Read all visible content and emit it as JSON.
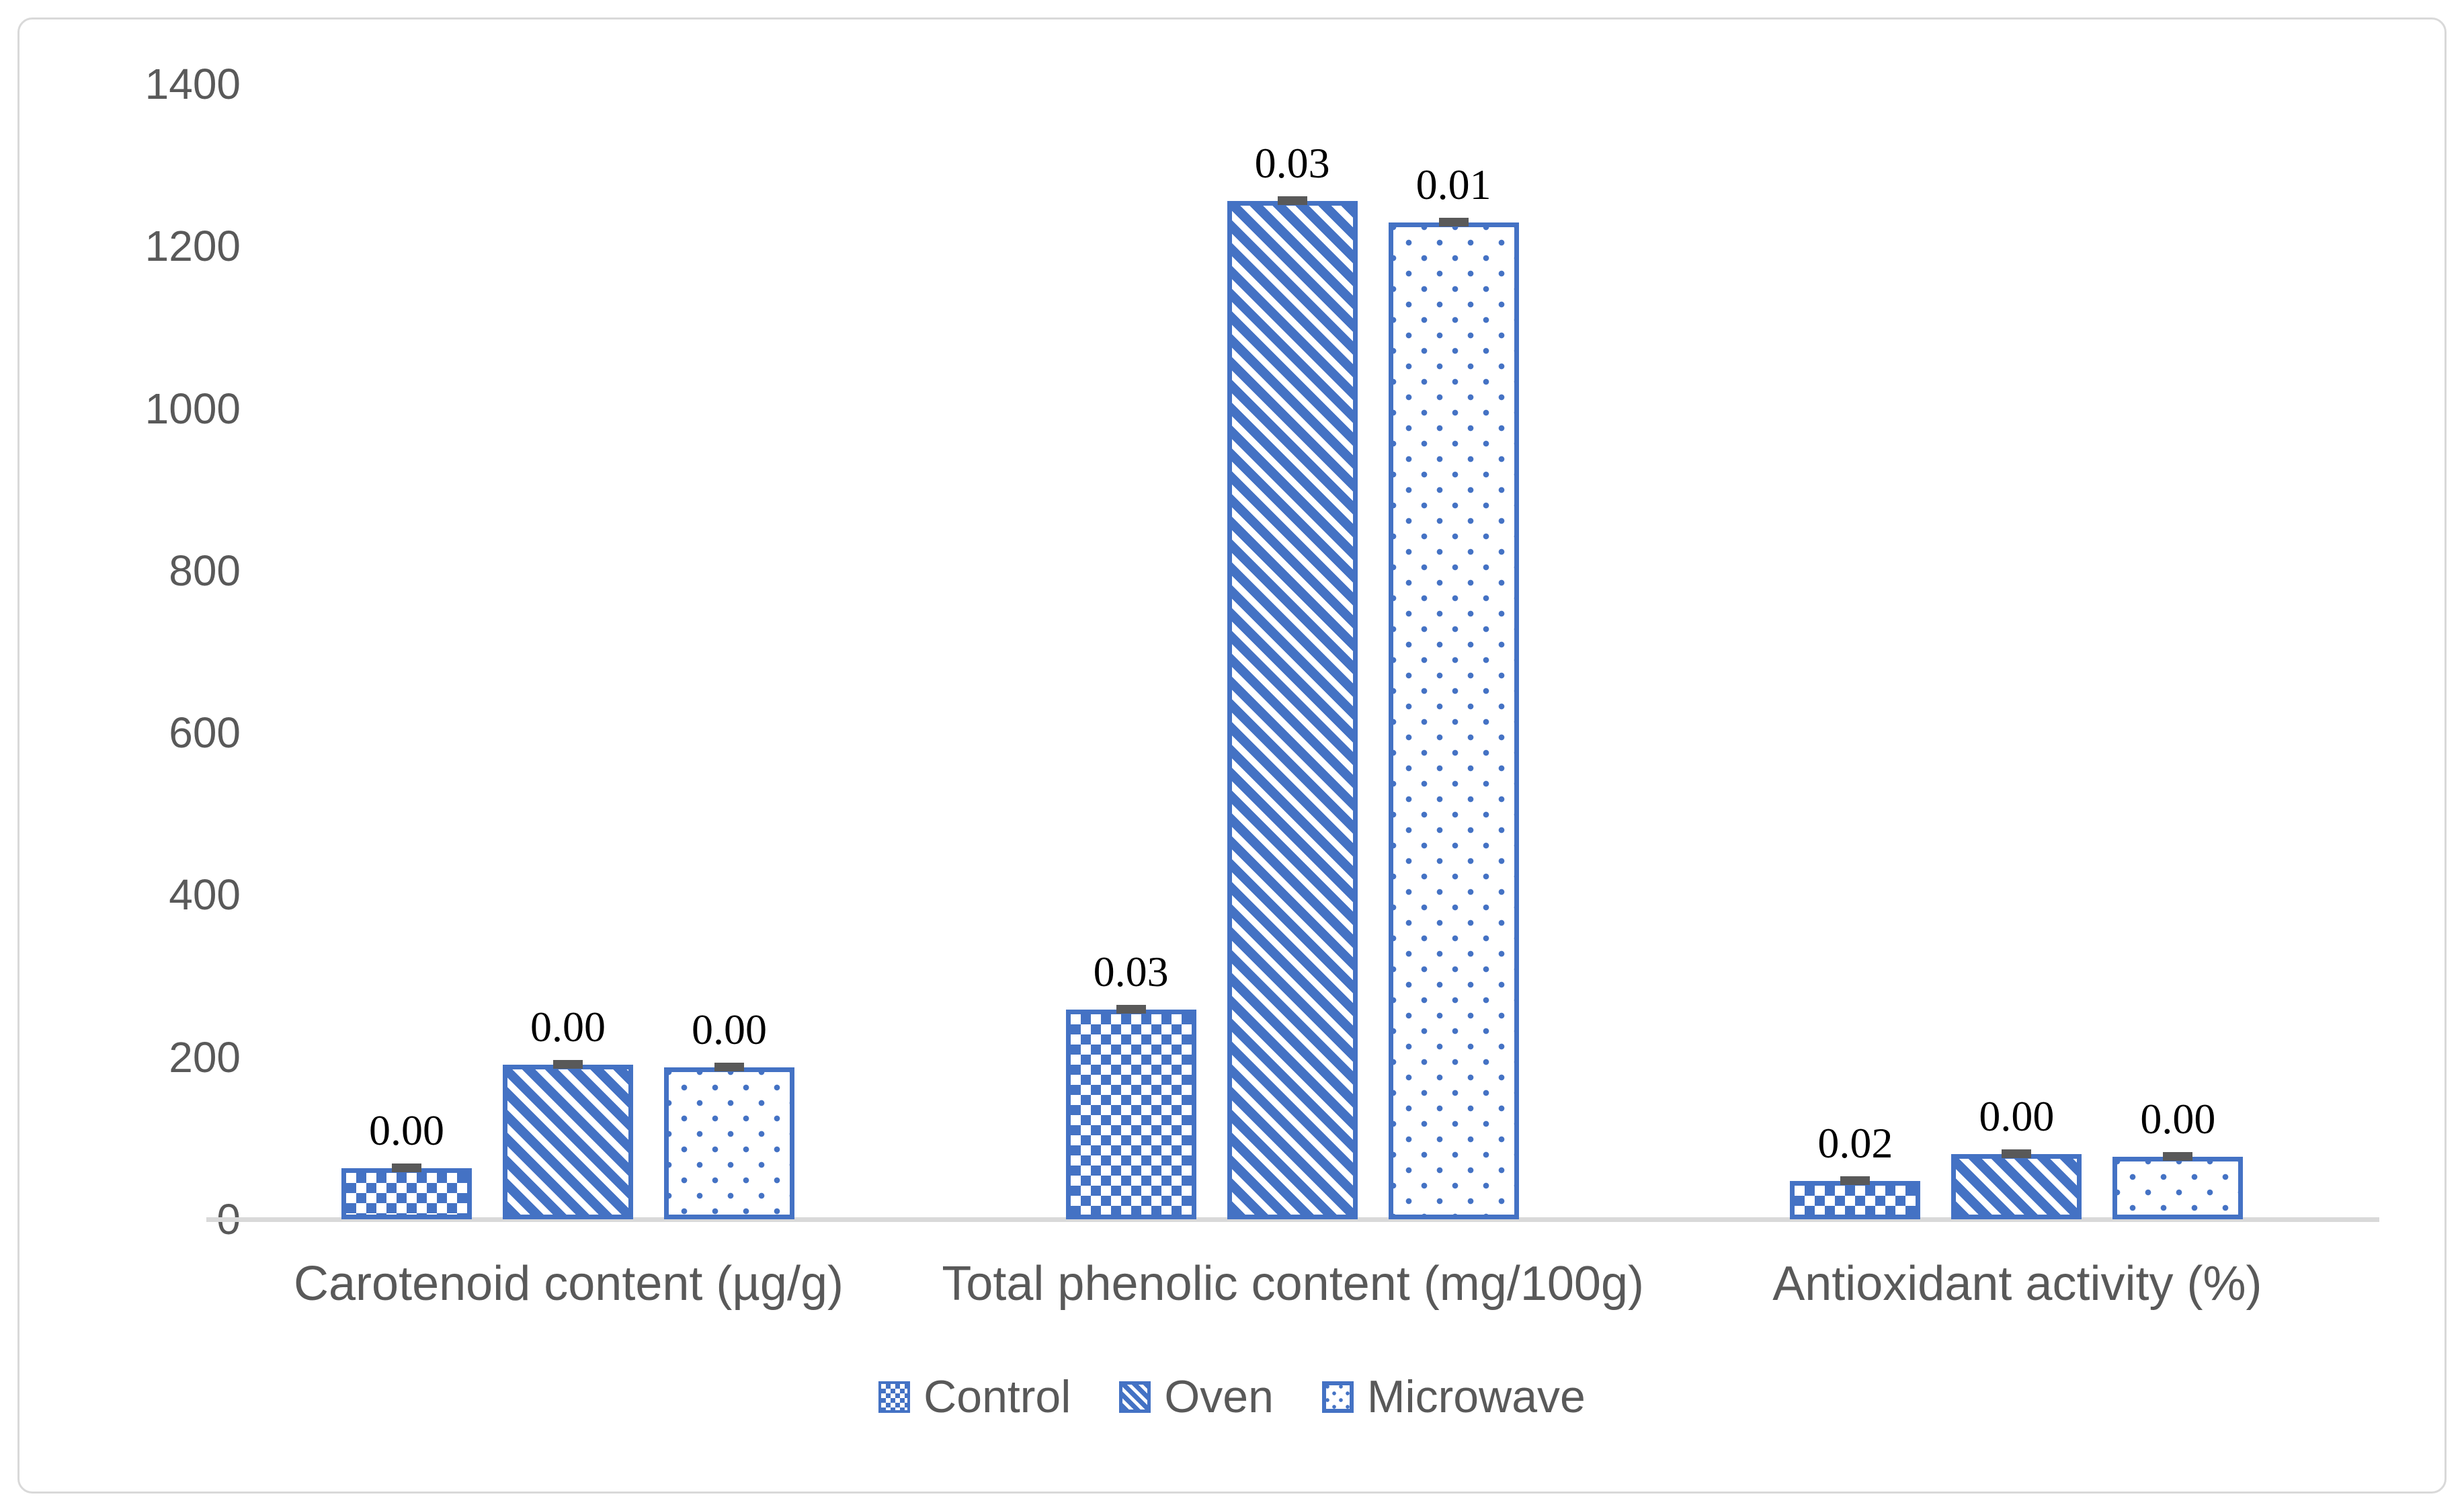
{
  "chart_data": {
    "type": "bar",
    "title": "",
    "categories": [
      "Carotenoid content (µg/g)",
      "Total phenolic content (mg/100g)",
      "Antioxidant activity (%)"
    ],
    "series": [
      {
        "name": "Control",
        "pattern": "checker",
        "values": [
          63,
          259,
          47
        ],
        "bar_labels": [
          "0.00",
          "0.03",
          "0.02"
        ]
      },
      {
        "name": "Oven",
        "pattern": "diagonal-stripes",
        "values": [
          191,
          1256,
          80
        ],
        "bar_labels": [
          "0.00",
          "0.03",
          "0.00"
        ]
      },
      {
        "name": "Microwave",
        "pattern": "dots",
        "values": [
          187,
          1229,
          77
        ],
        "bar_labels": [
          "0.00",
          "0.01",
          "0.00"
        ]
      }
    ],
    "y_ticks": [
      0,
      200,
      400,
      600,
      800,
      1000,
      1200,
      1400
    ],
    "ylim": [
      0,
      1400
    ],
    "xlabel": "",
    "ylabel": "",
    "grid": false,
    "legend_position": "bottom",
    "error_caps_shown": true,
    "colors": {
      "bar_blue": "#4472C4",
      "axis_gray": "#D9D9D9",
      "text_gray": "#595959",
      "error_cap_gray": "#595959",
      "data_label_black": "#000000"
    }
  }
}
